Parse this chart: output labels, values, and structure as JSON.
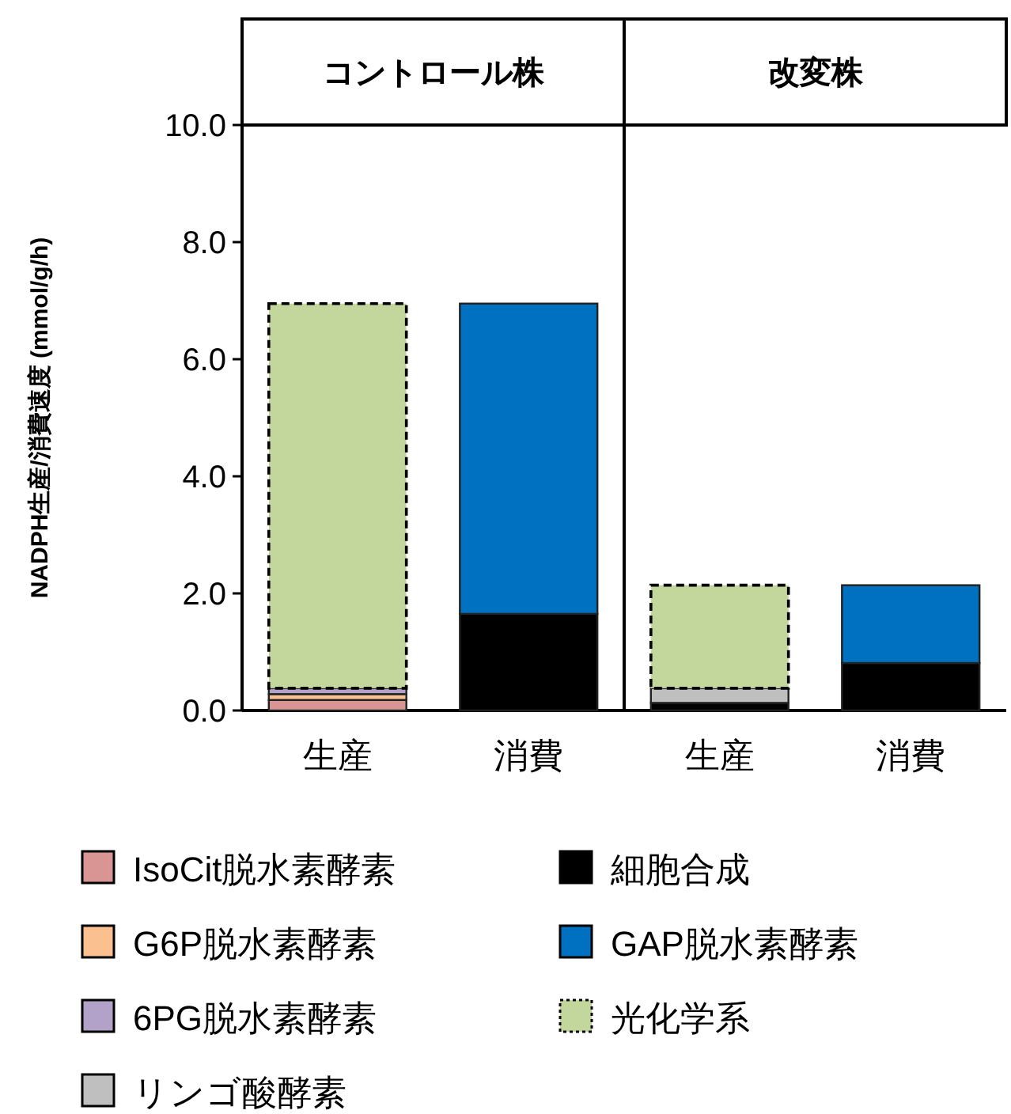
{
  "chart_data": [
    {
      "type": "bar",
      "stacked": true,
      "title": "コントロール株",
      "ylabel": "NADPH生産/消費速度 (mmol/g/h)",
      "categories": [
        "生産",
        "消費"
      ],
      "ylim": [
        0,
        10
      ],
      "yticks": [
        {
          "value": 0,
          "label": "0.0"
        },
        {
          "value": 2,
          "label": "2.0"
        },
        {
          "value": 4,
          "label": "4.0"
        },
        {
          "value": 6,
          "label": "6.0"
        },
        {
          "value": 8,
          "label": "8.0"
        },
        {
          "value": 10,
          "label": "10.0"
        }
      ],
      "legend": "bottom",
      "series": [
        {
          "name": "細胞合成",
          "color": "#000000",
          "values": [
            0,
            1.65
          ]
        },
        {
          "name": "IsoCit脱水素酵素",
          "color": "#d99594",
          "values": [
            0.18,
            0
          ]
        },
        {
          "name": "G6P脱水素酵素",
          "color": "#fac090",
          "values": [
            0.1,
            0
          ]
        },
        {
          "name": "6PG脱水素酵素",
          "color": "#b3a2c7",
          "values": [
            0.1,
            0
          ]
        },
        {
          "name": "リンゴ酸酵素",
          "color": "#bfbfbf",
          "values": [
            0,
            0
          ]
        },
        {
          "name": "GAP脱水素酵素",
          "color": "#0070c0",
          "values": [
            0,
            5.3
          ]
        },
        {
          "name": "光化学系",
          "color": "#c3d69b",
          "values": [
            6.57,
            0
          ],
          "line_style": "dashed"
        }
      ]
    },
    {
      "type": "bar",
      "stacked": true,
      "title": "改変株",
      "categories": [
        "生産",
        "消費"
      ],
      "ylim": [
        0,
        10
      ],
      "tick_labels": "x",
      "series": [
        {
          "color": "#000000",
          "values": [
            0.13,
            0.81
          ]
        },
        {
          "color": "#bfbfbf",
          "values": [
            0.25,
            0
          ]
        },
        {
          "color": "#0070c0",
          "values": [
            0,
            1.33
          ]
        },
        {
          "color": "#c3d69b",
          "values": [
            1.76,
            0
          ],
          "line_style": "dashed"
        }
      ]
    }
  ]
}
